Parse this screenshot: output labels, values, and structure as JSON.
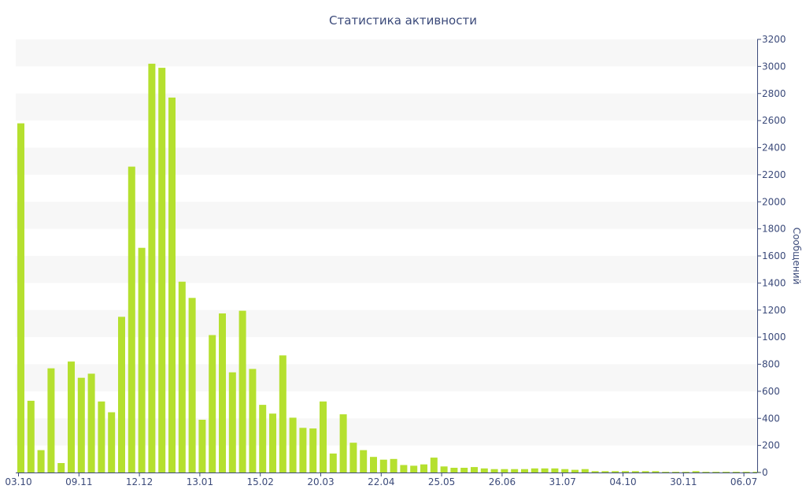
{
  "chart_data": {
    "type": "bar",
    "title": "Статистика активности",
    "xlabel": "",
    "ylabel": "Сообщений",
    "ylim": [
      0,
      3200
    ],
    "y_ticks": [
      0,
      200,
      400,
      600,
      800,
      1000,
      1200,
      1400,
      1600,
      1800,
      2000,
      2200,
      2400,
      2600,
      2800,
      3000,
      3200
    ],
    "x_tick_labels": [
      {
        "index": 0,
        "label": "03.10"
      },
      {
        "index": 6,
        "label": "09.11"
      },
      {
        "index": 12,
        "label": "12.12"
      },
      {
        "index": 18,
        "label": "13.01"
      },
      {
        "index": 24,
        "label": "15.02"
      },
      {
        "index": 30,
        "label": "20.03"
      },
      {
        "index": 36,
        "label": "22.04"
      },
      {
        "index": 42,
        "label": "25.05"
      },
      {
        "index": 48,
        "label": "26.06"
      },
      {
        "index": 54,
        "label": "31.07"
      },
      {
        "index": 60,
        "label": "04.10"
      },
      {
        "index": 66,
        "label": "30.11"
      },
      {
        "index": 72,
        "label": "06.07"
      }
    ],
    "values": [
      2580,
      530,
      165,
      770,
      70,
      820,
      700,
      730,
      525,
      445,
      1150,
      2260,
      1660,
      3020,
      2990,
      2770,
      1410,
      1290,
      390,
      1015,
      1175,
      740,
      1195,
      765,
      500,
      435,
      865,
      405,
      330,
      325,
      525,
      140,
      430,
      220,
      165,
      115,
      95,
      100,
      55,
      50,
      60,
      110,
      45,
      35,
      35,
      40,
      30,
      25,
      25,
      25,
      25,
      30,
      30,
      30,
      25,
      20,
      25,
      10,
      10,
      10,
      10,
      10,
      10,
      10,
      5,
      5,
      5,
      10,
      5,
      5,
      5,
      5,
      5,
      5
    ],
    "grid": true,
    "y_axis_position": "right",
    "bar_color": "#b5e02f",
    "band_color": "#f7f7f7",
    "text_color": "#3b4a7a",
    "axis_color": "#3b4a7a"
  }
}
